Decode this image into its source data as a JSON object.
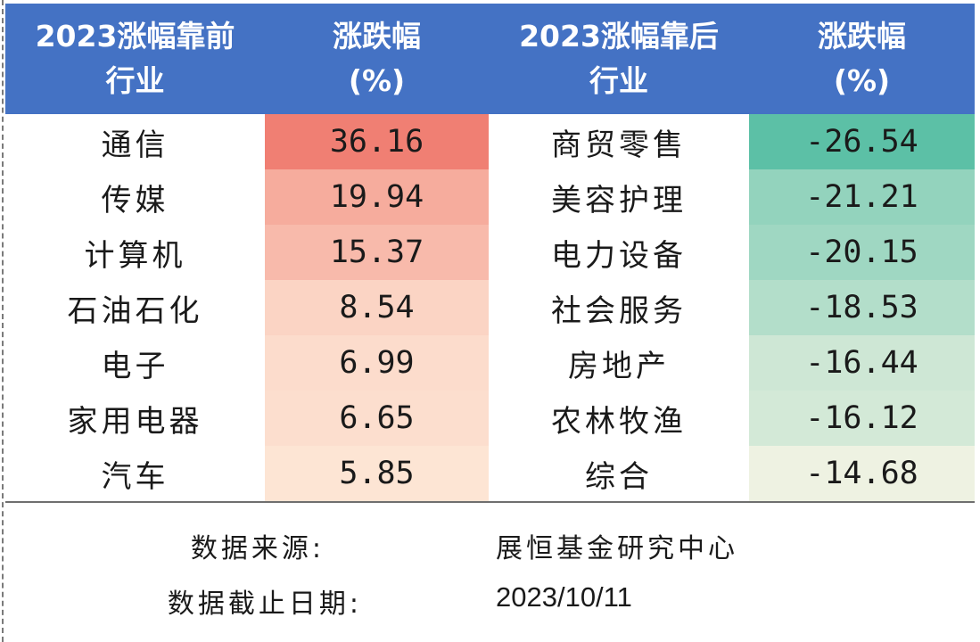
{
  "header": {
    "col1": "2023涨幅靠前\n行业",
    "col2": "涨跌幅\n(%)",
    "col3": "2023涨幅靠后\n行业",
    "col4": "涨跌幅\n(%)"
  },
  "chart_data": {
    "type": "table",
    "columns": [
      "2023涨幅靠前行业",
      "涨跌幅(%)",
      "2023涨幅靠后行业",
      "涨跌幅(%)"
    ],
    "top": [
      {
        "industry": "通信",
        "change": "36.16",
        "value": 36.16
      },
      {
        "industry": "传媒",
        "change": "19.94",
        "value": 19.94
      },
      {
        "industry": "计算机",
        "change": "15.37",
        "value": 15.37
      },
      {
        "industry": "石油石化",
        "change": "8.54",
        "value": 8.54
      },
      {
        "industry": "电子",
        "change": "6.99",
        "value": 6.99
      },
      {
        "industry": "家用电器",
        "change": "6.65",
        "value": 6.65
      },
      {
        "industry": "汽车",
        "change": "5.85",
        "value": 5.85
      }
    ],
    "bottom": [
      {
        "industry": "商贸零售",
        "change": "-26.54",
        "value": -26.54
      },
      {
        "industry": "美容护理",
        "change": "-21.21",
        "value": -21.21
      },
      {
        "industry": "电力设备",
        "change": "-20.15",
        "value": -20.15
      },
      {
        "industry": "社会服务",
        "change": "-18.53",
        "value": -18.53
      },
      {
        "industry": "房地产",
        "change": "-16.44",
        "value": -16.44
      },
      {
        "industry": "农林牧渔",
        "change": "-16.12",
        "value": -16.12
      },
      {
        "industry": "综合",
        "change": "-14.68",
        "value": -14.68
      }
    ]
  },
  "colors": {
    "header_bg": "#4472c4",
    "positive_max": "#f07f73",
    "positive_min": "#fde5d4",
    "negative_max": "#5cc0a6",
    "negative_min": "#eef2e2"
  },
  "footer": {
    "source_label": "数据来源:",
    "source_value": "展恒基金研究中心",
    "date_label": "数据截止日期:",
    "date_value": "2023/10/11"
  }
}
